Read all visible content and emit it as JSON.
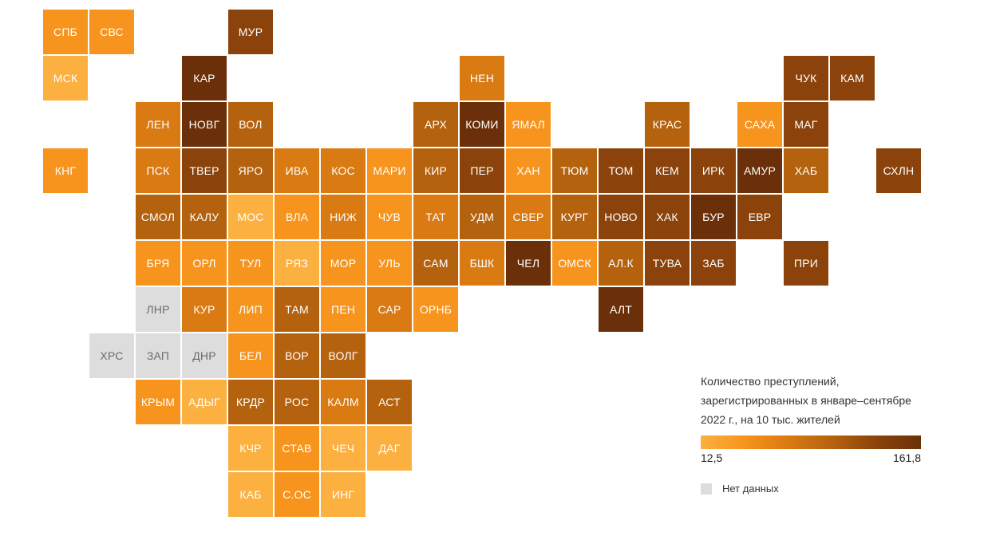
{
  "colors": {
    "scale": [
      "#fbb040",
      "#f7941d",
      "#d97a12",
      "#b5620e",
      "#8b430b",
      "#6b3009"
    ],
    "no_data": "#dddddd"
  },
  "legend": {
    "title": "Количество преступлений, зарегистрированных в январе–сентябре 2022 г., на 10 тыс. жителей",
    "min_label": "12,5",
    "max_label": "161,8",
    "nodata_label": "Нет данных"
  },
  "regions": [
    {
      "code": "СПБ",
      "col": 0,
      "row": 0,
      "level": 1
    },
    {
      "code": "СВС",
      "col": 1,
      "row": 0,
      "level": 1
    },
    {
      "code": "МУР",
      "col": 4,
      "row": 0,
      "level": 4
    },
    {
      "code": "МСК",
      "col": 0,
      "row": 1,
      "level": 0
    },
    {
      "code": "КАР",
      "col": 3,
      "row": 1,
      "level": 5
    },
    {
      "code": "НЕН",
      "col": 9,
      "row": 1,
      "level": 2
    },
    {
      "code": "ЧУК",
      "col": 16,
      "row": 1,
      "level": 4
    },
    {
      "code": "КАМ",
      "col": 17,
      "row": 1,
      "level": 4
    },
    {
      "code": "ЛЕН",
      "col": 2,
      "row": 2,
      "level": 2
    },
    {
      "code": "НОВГ",
      "col": 3,
      "row": 2,
      "level": 5
    },
    {
      "code": "ВОЛ",
      "col": 4,
      "row": 2,
      "level": 3
    },
    {
      "code": "АРХ",
      "col": 8,
      "row": 2,
      "level": 3
    },
    {
      "code": "КОМИ",
      "col": 9,
      "row": 2,
      "level": 5
    },
    {
      "code": "ЯМАЛ",
      "col": 10,
      "row": 2,
      "level": 1
    },
    {
      "code": "КРАС",
      "col": 13,
      "row": 2,
      "level": 3
    },
    {
      "code": "САХА",
      "col": 15,
      "row": 2,
      "level": 1
    },
    {
      "code": "МАГ",
      "col": 16,
      "row": 2,
      "level": 4
    },
    {
      "code": "КНГ",
      "col": 0,
      "row": 3,
      "level": 1
    },
    {
      "code": "ПСК",
      "col": 2,
      "row": 3,
      "level": 2
    },
    {
      "code": "ТВЕР",
      "col": 3,
      "row": 3,
      "level": 4
    },
    {
      "code": "ЯРО",
      "col": 4,
      "row": 3,
      "level": 3
    },
    {
      "code": "ИВА",
      "col": 5,
      "row": 3,
      "level": 2
    },
    {
      "code": "КОС",
      "col": 6,
      "row": 3,
      "level": 2
    },
    {
      "code": "МАРИ",
      "col": 7,
      "row": 3,
      "level": 1
    },
    {
      "code": "КИР",
      "col": 8,
      "row": 3,
      "level": 3
    },
    {
      "code": "ПЕР",
      "col": 9,
      "row": 3,
      "level": 4
    },
    {
      "code": "ХАН",
      "col": 10,
      "row": 3,
      "level": 1
    },
    {
      "code": "ТЮМ",
      "col": 11,
      "row": 3,
      "level": 3
    },
    {
      "code": "ТОМ",
      "col": 12,
      "row": 3,
      "level": 4
    },
    {
      "code": "КЕМ",
      "col": 13,
      "row": 3,
      "level": 4
    },
    {
      "code": "ИРК",
      "col": 14,
      "row": 3,
      "level": 4
    },
    {
      "code": "АМУР",
      "col": 15,
      "row": 3,
      "level": 5
    },
    {
      "code": "ХАБ",
      "col": 16,
      "row": 3,
      "level": 3
    },
    {
      "code": "СХЛН",
      "col": 18,
      "row": 3,
      "level": 4
    },
    {
      "code": "СМОЛ",
      "col": 2,
      "row": 4,
      "level": 3
    },
    {
      "code": "КАЛУ",
      "col": 3,
      "row": 4,
      "level": 3
    },
    {
      "code": "МОС",
      "col": 4,
      "row": 4,
      "level": 0
    },
    {
      "code": "ВЛА",
      "col": 5,
      "row": 4,
      "level": 1
    },
    {
      "code": "НИЖ",
      "col": 6,
      "row": 4,
      "level": 2
    },
    {
      "code": "ЧУВ",
      "col": 7,
      "row": 4,
      "level": 1
    },
    {
      "code": "ТАТ",
      "col": 8,
      "row": 4,
      "level": 2
    },
    {
      "code": "УДМ",
      "col": 9,
      "row": 4,
      "level": 3
    },
    {
      "code": "СВЕР",
      "col": 10,
      "row": 4,
      "level": 2
    },
    {
      "code": "КУРГ",
      "col": 11,
      "row": 4,
      "level": 3
    },
    {
      "code": "НОВО",
      "col": 12,
      "row": 4,
      "level": 4
    },
    {
      "code": "ХАК",
      "col": 13,
      "row": 4,
      "level": 4
    },
    {
      "code": "БУР",
      "col": 14,
      "row": 4,
      "level": 5
    },
    {
      "code": "ЕВР",
      "col": 15,
      "row": 4,
      "level": 4
    },
    {
      "code": "БРЯ",
      "col": 2,
      "row": 5,
      "level": 1
    },
    {
      "code": "ОРЛ",
      "col": 3,
      "row": 5,
      "level": 1
    },
    {
      "code": "ТУЛ",
      "col": 4,
      "row": 5,
      "level": 1
    },
    {
      "code": "РЯЗ",
      "col": 5,
      "row": 5,
      "level": 0
    },
    {
      "code": "МОР",
      "col": 6,
      "row": 5,
      "level": 1
    },
    {
      "code": "УЛЬ",
      "col": 7,
      "row": 5,
      "level": 1
    },
    {
      "code": "САМ",
      "col": 8,
      "row": 5,
      "level": 3
    },
    {
      "code": "БШК",
      "col": 9,
      "row": 5,
      "level": 2
    },
    {
      "code": "ЧЕЛ",
      "col": 10,
      "row": 5,
      "level": 5
    },
    {
      "code": "ОМСК",
      "col": 11,
      "row": 5,
      "level": 1
    },
    {
      "code": "АЛ.К",
      "col": 12,
      "row": 5,
      "level": 3
    },
    {
      "code": "ТУВА",
      "col": 13,
      "row": 5,
      "level": 4
    },
    {
      "code": "ЗАБ",
      "col": 14,
      "row": 5,
      "level": 4
    },
    {
      "code": "ПРИ",
      "col": 16,
      "row": 5,
      "level": 4
    },
    {
      "code": "ЛНР",
      "col": 2,
      "row": 6,
      "level": -1
    },
    {
      "code": "КУР",
      "col": 3,
      "row": 6,
      "level": 2
    },
    {
      "code": "ЛИП",
      "col": 4,
      "row": 6,
      "level": 1
    },
    {
      "code": "ТАМ",
      "col": 5,
      "row": 6,
      "level": 3
    },
    {
      "code": "ПЕН",
      "col": 6,
      "row": 6,
      "level": 1
    },
    {
      "code": "САР",
      "col": 7,
      "row": 6,
      "level": 2
    },
    {
      "code": "ОРНБ",
      "col": 8,
      "row": 6,
      "level": 1
    },
    {
      "code": "АЛТ",
      "col": 12,
      "row": 6,
      "level": 5
    },
    {
      "code": "ХРС",
      "col": 1,
      "row": 7,
      "level": -1
    },
    {
      "code": "ЗАП",
      "col": 2,
      "row": 7,
      "level": -1
    },
    {
      "code": "ДНР",
      "col": 3,
      "row": 7,
      "level": -1
    },
    {
      "code": "БЕЛ",
      "col": 4,
      "row": 7,
      "level": 1
    },
    {
      "code": "ВОР",
      "col": 5,
      "row": 7,
      "level": 3
    },
    {
      "code": "ВОЛГ",
      "col": 6,
      "row": 7,
      "level": 3
    },
    {
      "code": "КРЫМ",
      "col": 2,
      "row": 8,
      "level": 1
    },
    {
      "code": "АДЫГ",
      "col": 3,
      "row": 8,
      "level": 0
    },
    {
      "code": "КРДР",
      "col": 4,
      "row": 8,
      "level": 3
    },
    {
      "code": "РОС",
      "col": 5,
      "row": 8,
      "level": 3
    },
    {
      "code": "КАЛМ",
      "col": 6,
      "row": 8,
      "level": 2
    },
    {
      "code": "АСТ",
      "col": 7,
      "row": 8,
      "level": 3
    },
    {
      "code": "КЧР",
      "col": 4,
      "row": 9,
      "level": 0
    },
    {
      "code": "СТАВ",
      "col": 5,
      "row": 9,
      "level": 1
    },
    {
      "code": "ЧЕЧ",
      "col": 6,
      "row": 9,
      "level": 0
    },
    {
      "code": "ДАГ",
      "col": 7,
      "row": 9,
      "level": 0
    },
    {
      "code": "КАБ",
      "col": 4,
      "row": 10,
      "level": 0
    },
    {
      "code": "С.ОС",
      "col": 5,
      "row": 10,
      "level": 1
    },
    {
      "code": "ИНГ",
      "col": 6,
      "row": 10,
      "level": 0
    }
  ]
}
